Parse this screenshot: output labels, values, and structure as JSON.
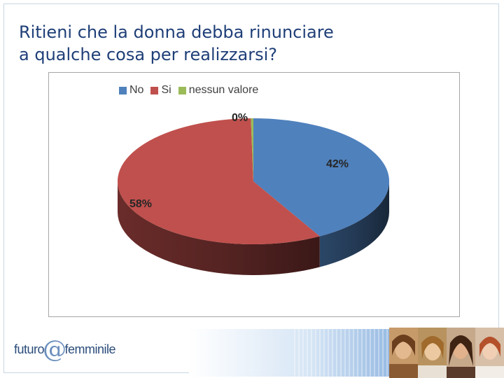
{
  "slide": {
    "title_line1": "Ritieni che la donna debba rinunciare",
    "title_line2": "a qualche cosa per realizzarsi?"
  },
  "logo": {
    "part1": "futuro",
    "at": "@",
    "part2": "femminile"
  },
  "chart_data": {
    "type": "pie",
    "style": "3d",
    "legend_position": "top",
    "categories": [
      "No",
      "Si",
      "nessun valore"
    ],
    "values": [
      42,
      58,
      0
    ],
    "labels": [
      "42%",
      "58%",
      "0%"
    ],
    "colors": [
      "#4f81bd",
      "#c0504d",
      "#9bbb59"
    ]
  },
  "photos": {
    "count": 4,
    "description_colors": [
      "#d9b38a",
      "#e0c09a",
      "#d8b08c",
      "#e6c2a2"
    ]
  }
}
